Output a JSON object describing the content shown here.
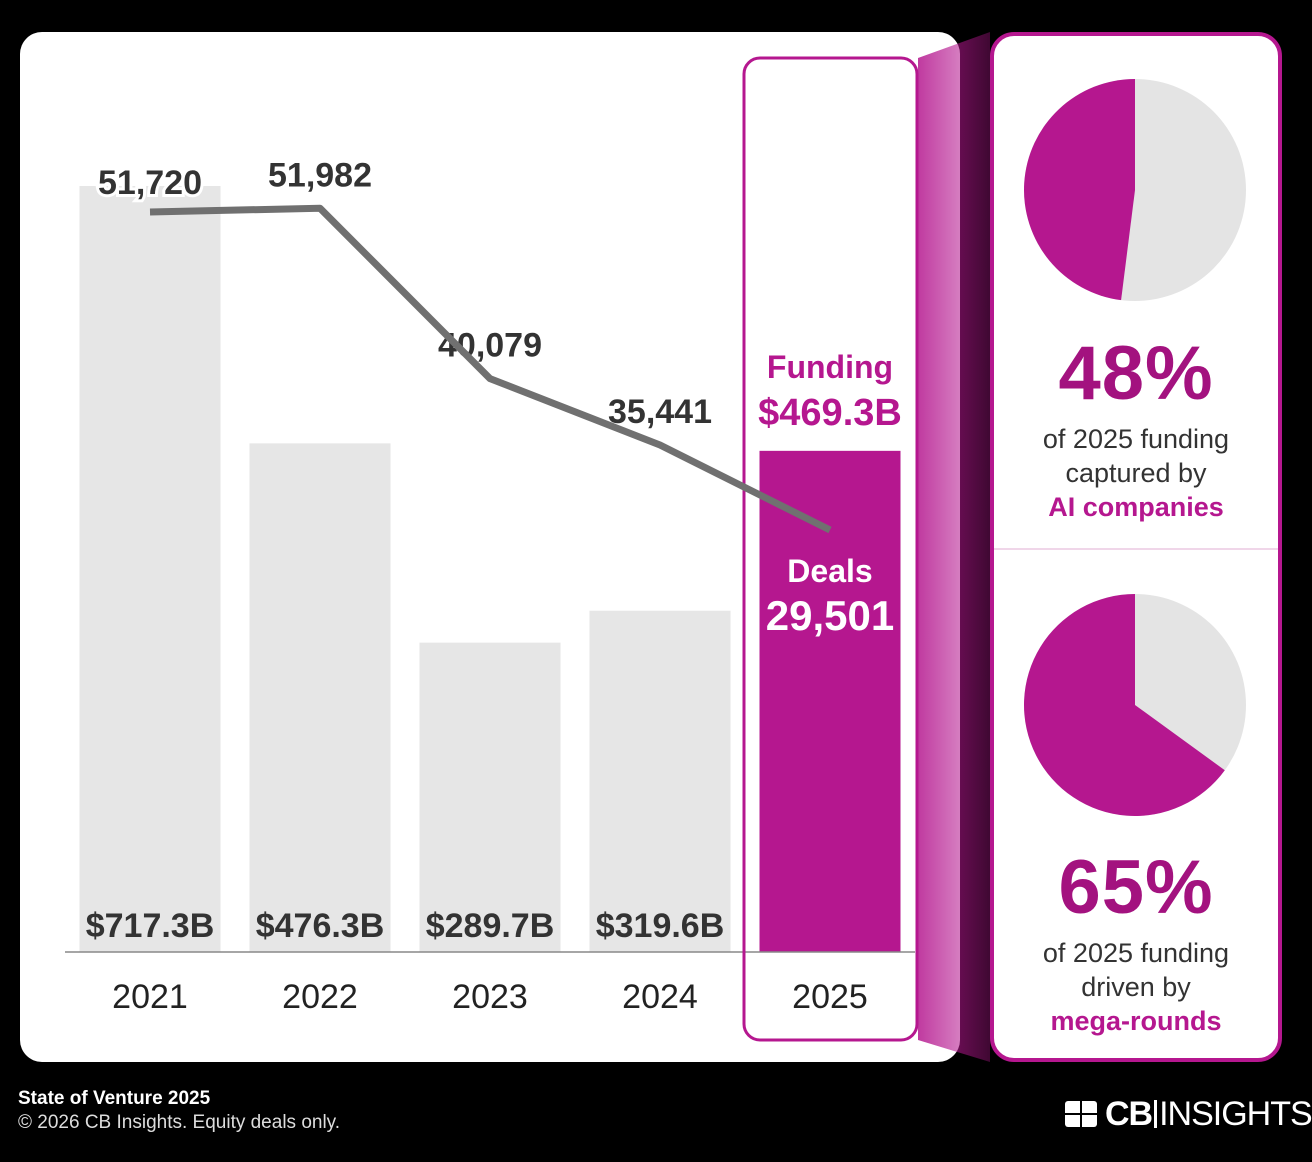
{
  "chart_data": {
    "type": "bar+line",
    "categories": [
      "2021",
      "2022",
      "2023",
      "2024",
      "2025"
    ],
    "series": [
      {
        "name": "Funding",
        "unit": "$B",
        "values": [
          717.3,
          476.3,
          289.7,
          319.6,
          469.3
        ],
        "labels": [
          "$717.3B",
          "$476.3B",
          "$289.7B",
          "$319.6B",
          "$469.3B"
        ]
      },
      {
        "name": "Deals",
        "values": [
          51720,
          51982,
          40079,
          35441,
          29501
        ],
        "labels": [
          "51,720",
          "51,982",
          "40,079",
          "35,441",
          "29,501"
        ]
      }
    ],
    "highlight": {
      "category": "2025",
      "funding_title": "Funding",
      "deals_title": "Deals"
    },
    "colors": {
      "bar": "#e6e6e6",
      "highlight": "#b5178f",
      "line": "#707070",
      "text": "#333333",
      "accent": "#a3127f"
    }
  },
  "stats": [
    {
      "percent": "48%",
      "value": 48,
      "line1": "of 2025 funding",
      "line2": "captured by",
      "accent": "AI companies"
    },
    {
      "percent": "65%",
      "value": 65,
      "line1": "of 2025 funding",
      "line2": "driven by",
      "accent": "mega-rounds"
    }
  ],
  "footer": {
    "title": "State of Venture 2025",
    "copyright": "© 2026 CB Insights. Equity deals only."
  },
  "logo": {
    "text_bold": "CB",
    "text_light": "INSIGHTS",
    "icon": "cb-logo-icon"
  }
}
